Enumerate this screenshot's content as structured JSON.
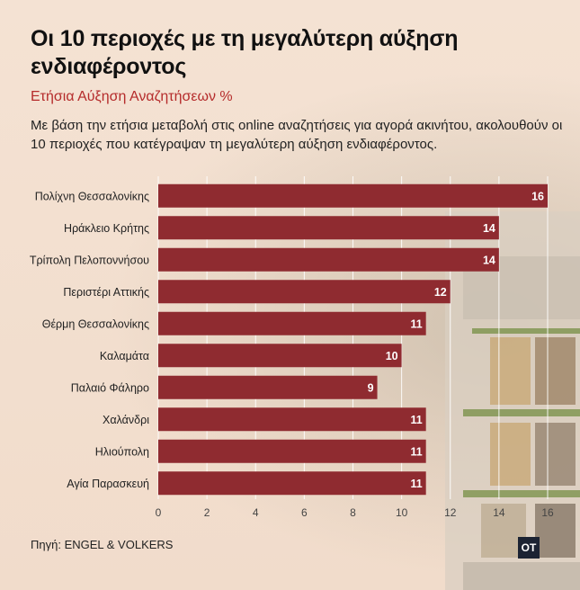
{
  "header": {
    "title": "Οι 10 περιοχές με τη μεγαλύτερη αύξηση ενδιαφέροντος",
    "subtitle": "Ετήσια Αύξηση Αναζητήσεων %",
    "description": "Με βάση την ετήσια μεταβολή στις online αναζητήσεις για αγορά ακινήτου, ακολουθούν οι 10 περιοχές που κατέγραψαν τη μεγαλύτερη αύξηση ενδιαφέροντος."
  },
  "footer": {
    "source": "Πηγή: ENGEL & VOLKERS",
    "logo": "OT"
  },
  "colors": {
    "bar": "#8f2b30",
    "title": "#111111",
    "subtitle": "#b52b2b"
  },
  "chart_data": {
    "type": "bar",
    "orientation": "horizontal",
    "categories": [
      "Πολίχνη Θεσσαλονίκης",
      "Ηράκλειο Κρήτης",
      "Τρίπολη Πελοποννήσου",
      "Περιστέρι Αττικής",
      "Θέρμη Θεσσαλονίκης",
      "Καλαμάτα",
      "Παλαιό Φάληρο",
      "Χαλάνδρι",
      "Ηλιούπολη",
      "Αγία Παρασκευή"
    ],
    "values": [
      16,
      14,
      14,
      12,
      11,
      10,
      9,
      11,
      11,
      11
    ],
    "data_labels": [
      "16",
      "14",
      "14",
      "12",
      "11",
      "10",
      "9",
      "11",
      "11",
      "11"
    ],
    "xticks": [
      "0",
      "2",
      "4",
      "6",
      "8",
      "10",
      "12",
      "14",
      "16"
    ],
    "xlim": [
      0,
      16
    ],
    "grid": true
  }
}
